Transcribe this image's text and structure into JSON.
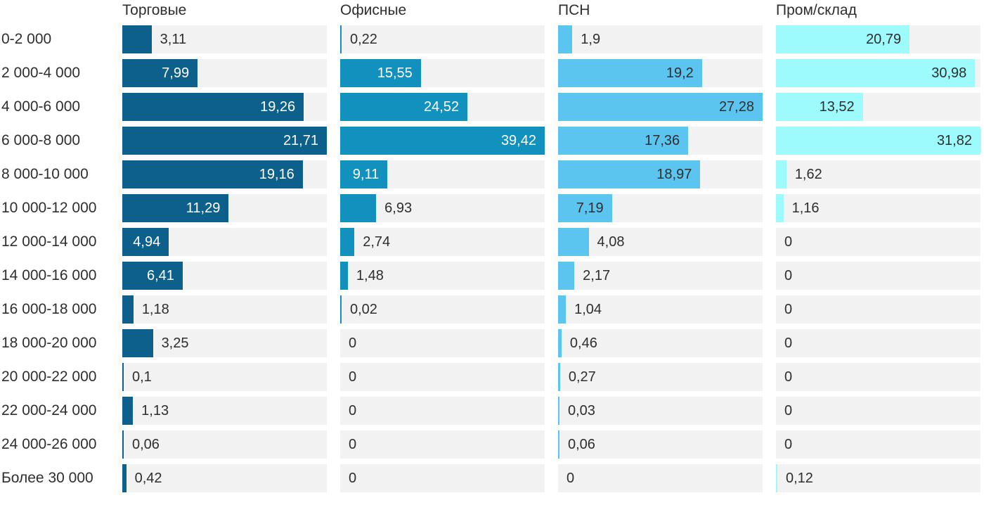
{
  "chart_data": {
    "type": "bar",
    "orientation": "horizontal",
    "layout": "small-multiples-per-column",
    "grid": false,
    "legend": "none",
    "value_format": "comma-decimal",
    "categories": [
      "0-2 000",
      "2 000-4 000",
      "4 000-6 000",
      "6 000-8 000",
      "8 000-10 000",
      "10 000-12 000",
      "12 000-14 000",
      "14 000-16 000",
      "16 000-18 000",
      "18 000-20 000",
      "20 000-22 000",
      "22 000-24 000",
      "24 000-26 000",
      "Более 30 000"
    ],
    "series": [
      {
        "name": "Торговые",
        "color": "#0e608c",
        "inside_label_color": "#ffffff",
        "axis_max": 21.71,
        "values": [
          3.11,
          7.99,
          19.26,
          21.71,
          19.16,
          11.29,
          4.94,
          6.41,
          1.18,
          3.25,
          0.1,
          1.13,
          0.06,
          0.42
        ],
        "labels": [
          "3,11",
          "7,99",
          "19,26",
          "21,71",
          "19,16",
          "11,29",
          "4,94",
          "6,41",
          "1,18",
          "3,25",
          "0,1",
          "1,13",
          "0,06",
          "0,42"
        ]
      },
      {
        "name": "Офисные",
        "color": "#1291be",
        "inside_label_color": "#ffffff",
        "axis_max": 39.42,
        "values": [
          0.22,
          15.55,
          24.52,
          39.42,
          9.11,
          6.93,
          2.74,
          1.48,
          0.02,
          0,
          0,
          0,
          0,
          0
        ],
        "labels": [
          "0,22",
          "15,55",
          "24,52",
          "39,42",
          "9,11",
          "6,93",
          "2,74",
          "1,48",
          "0,02",
          "0",
          "0",
          "0",
          "0",
          "0"
        ]
      },
      {
        "name": "ПСН",
        "color": "#5bc5ef",
        "inside_label_color": "#2e2e2e",
        "axis_max": 27.28,
        "values": [
          1.9,
          19.2,
          27.28,
          17.36,
          18.97,
          7.19,
          4.08,
          2.17,
          1.04,
          0.46,
          0.27,
          0.03,
          0.06,
          0
        ],
        "labels": [
          "1,9",
          "19,2",
          "27,28",
          "17,36",
          "18,97",
          "7,19",
          "4,08",
          "2,17",
          "1,04",
          "0,46",
          "0,27",
          "0,03",
          "0,06",
          "0"
        ]
      },
      {
        "name": "Пром/склад",
        "color": "#9efbfb",
        "inside_label_color": "#2e2e2e",
        "axis_max": 31.82,
        "values": [
          20.79,
          30.98,
          13.52,
          31.82,
          1.62,
          1.16,
          0,
          0,
          0,
          0,
          0,
          0,
          0,
          0.12
        ],
        "labels": [
          "20,79",
          "30,98",
          "13,52",
          "31,82",
          "1,62",
          "1,16",
          "0",
          "0",
          "0",
          "0",
          "0",
          "0",
          "0",
          "0,12"
        ]
      }
    ],
    "colors": {
      "track": "#f2f2f2",
      "background": "#ffffff",
      "text": "#2e2e2e",
      "outside_label": "#2e2e2e"
    }
  }
}
